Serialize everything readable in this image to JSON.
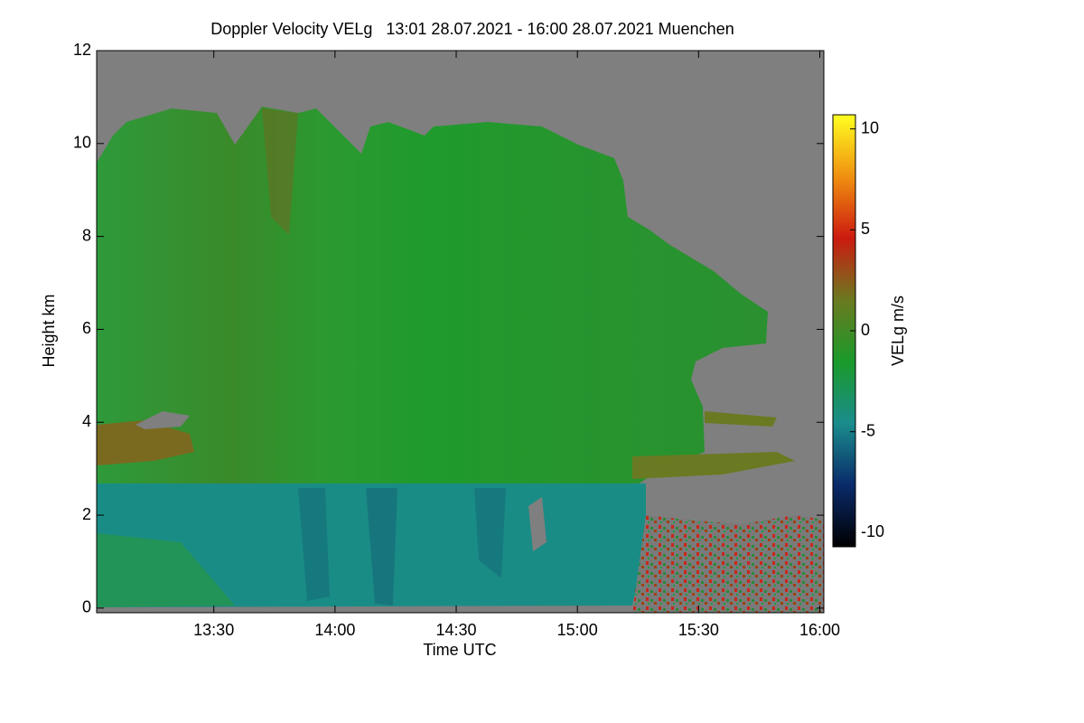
{
  "chart_data": {
    "type": "heatmap",
    "title": "Doppler Velocity VELg   13:01 28.07.2021 - 16:00 28.07.2021 Muenchen",
    "xlabel": "Time UTC",
    "ylabel": "Height km",
    "xlim": [
      781,
      961
    ],
    "xticks": [
      {
        "value": 810,
        "label": "13:30"
      },
      {
        "value": 840,
        "label": "14:00"
      },
      {
        "value": 870,
        "label": "14:30"
      },
      {
        "value": 900,
        "label": "15:00"
      },
      {
        "value": 930,
        "label": "15:30"
      },
      {
        "value": 960,
        "label": "16:00"
      }
    ],
    "ylim": [
      -0.1,
      12
    ],
    "yticks": [
      0,
      2,
      4,
      6,
      8,
      10,
      12
    ],
    "colorbar": {
      "label": "VELg m/s",
      "clim": [
        -10.7,
        10.7
      ],
      "ticks": [
        -10,
        -5,
        0,
        5,
        10
      ],
      "colors": [
        "#000000",
        "#0a2a6a",
        "#1a8c8c",
        "#1a9a2a",
        "#6a7a20",
        "#cc1a10",
        "#f09010",
        "#ffff20"
      ]
    }
  }
}
